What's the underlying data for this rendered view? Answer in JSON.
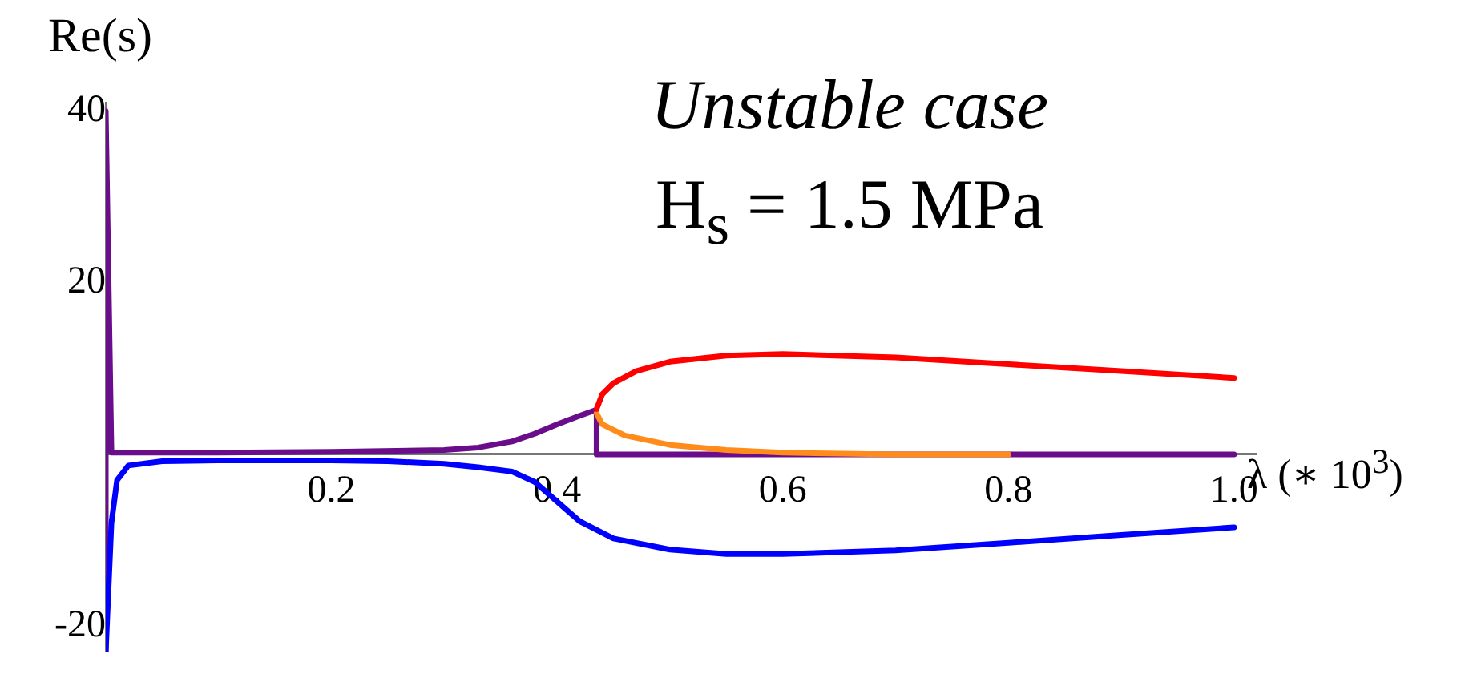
{
  "chart_data": {
    "type": "line",
    "xlabel": "λ  (∗ 10$^{3}$)",
    "ylabel": "Re(s)",
    "annotations": [
      "Unstable case",
      "H$_{s}$ = 1.5 MPa"
    ],
    "xlim": [
      0,
      1.02
    ],
    "ylim": [
      -23,
      41
    ],
    "xticks": [
      0.2,
      0.4,
      0.6,
      0.8,
      {
        "value": 1,
        "label": "1.0"
      }
    ],
    "yticks": [
      -20,
      20,
      40
    ],
    "grid": false,
    "legend": false,
    "marker": "none",
    "line_style": "solid",
    "series": [
      {
        "color": "#0000ff",
        "x": [
          0,
          0.005,
          0.01,
          0.02,
          0.05,
          0.1,
          0.2,
          0.25,
          0.3,
          0.33,
          0.36,
          0.38,
          0.4,
          0.42,
          0.45,
          0.5,
          0.55,
          0.6,
          0.7,
          0.8,
          0.9,
          1.0
        ],
        "values": [
          -23,
          -8,
          -3,
          -1.3,
          -0.8,
          -0.7,
          -0.7,
          -0.8,
          -1.1,
          -1.5,
          -2,
          -3.2,
          -5.5,
          -7.8,
          -9.8,
          -11.1,
          -11.6,
          -11.6,
          -11.2,
          -10.3,
          -9.4,
          -8.5
        ]
      },
      {
        "color": "#ff0000",
        "x": [
          0.435,
          0.44,
          0.45,
          0.47,
          0.5,
          0.55,
          0.6,
          0.7,
          0.8,
          0.9,
          1.0
        ],
        "values": [
          5.3,
          7,
          8.3,
          9.7,
          10.8,
          11.5,
          11.7,
          11.3,
          10.5,
          9.7,
          8.9
        ]
      },
      {
        "color": "#ff8c1a",
        "x": [
          0.435,
          0.44,
          0.46,
          0.5,
          0.55,
          0.6,
          0.7,
          0.8
        ],
        "values": [
          4.8,
          3.5,
          2.2,
          1.1,
          0.5,
          0.2,
          0,
          0
        ]
      },
      {
        "color": "#6a0d8a",
        "x": [
          0,
          0,
          0.005,
          0.1,
          0.2,
          0.3,
          0.33,
          0.36,
          0.38,
          0.4,
          0.42,
          0.435,
          0.435,
          1.0
        ],
        "values": [
          -23,
          40,
          0.2,
          0.2,
          0.3,
          0.5,
          0.8,
          1.5,
          2.4,
          3.5,
          4.5,
          5.2,
          0,
          0
        ]
      }
    ]
  }
}
